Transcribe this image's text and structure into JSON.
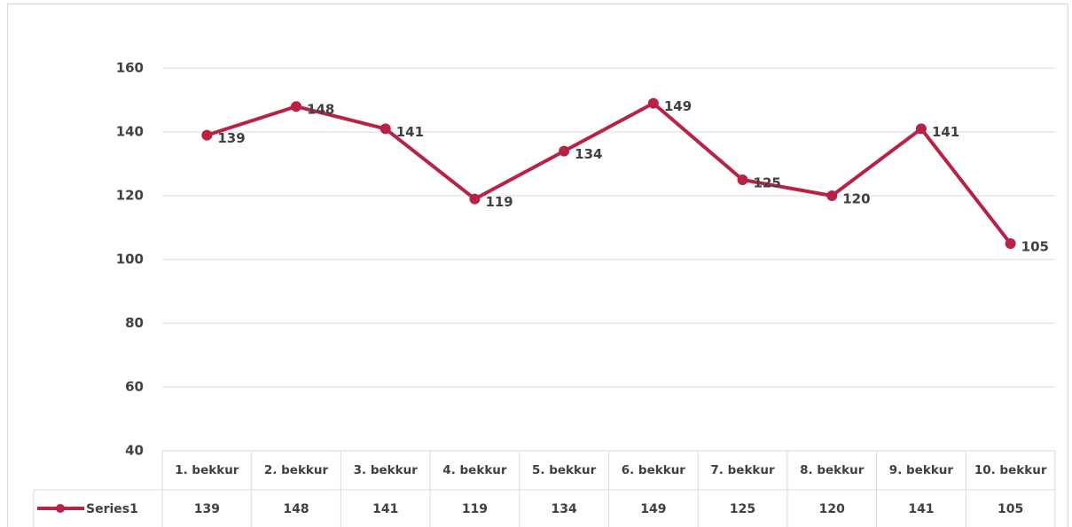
{
  "chart_data": {
    "type": "line",
    "categories": [
      "1. bekkur",
      "2. bekkur",
      "3. bekkur",
      "4. bekkur",
      "5. bekkur",
      "6. bekkur",
      "7. bekkur",
      "8. bekkur",
      "9. bekkur",
      "10. bekkur"
    ],
    "series": [
      {
        "name": "Series1",
        "color": "#b82244",
        "values": [
          139,
          148,
          141,
          119,
          134,
          149,
          125,
          120,
          141,
          105
        ]
      }
    ],
    "ylim": [
      40,
      160
    ],
    "yticks": [
      40,
      60,
      80,
      100,
      120,
      140,
      160
    ],
    "grid": true,
    "data_table": true
  }
}
